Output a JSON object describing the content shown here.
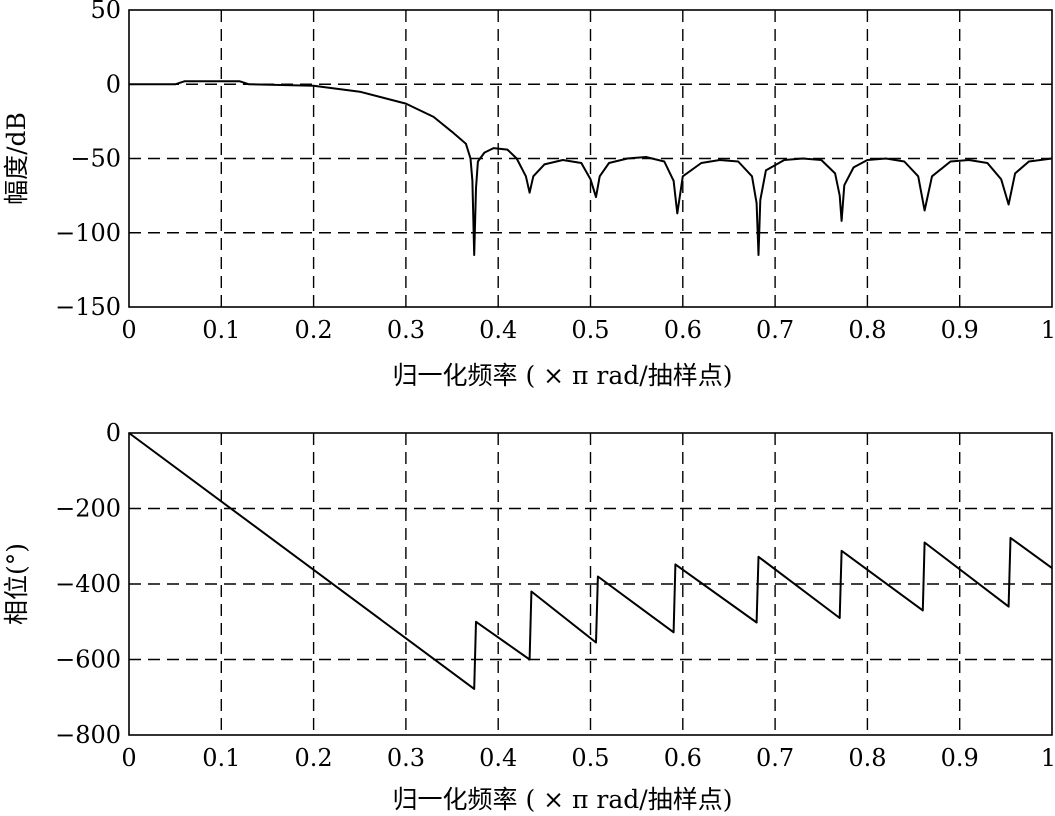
{
  "chart_data": [
    {
      "type": "line",
      "title": "",
      "xlabel": "归一化频率 ( × π rad/抽样点)",
      "ylabel": "幅度/dB",
      "xlim": [
        0,
        1
      ],
      "ylim": [
        -150,
        50
      ],
      "xticks": [
        "0",
        "0.1",
        "0.2",
        "0.3",
        "0.4",
        "0.5",
        "0.6",
        "0.7",
        "0.8",
        "0.9",
        "1"
      ],
      "yticks": [
        "50",
        "0",
        "−50",
        "−100",
        "−150"
      ],
      "grid": true,
      "series": [
        {
          "x": [
            0,
            0.05,
            0.06,
            0.12,
            0.13,
            0.2,
            0.25,
            0.3,
            0.33,
            0.35,
            0.365,
            0.37,
            0.372,
            0.374,
            0.376,
            0.378,
            0.385,
            0.395,
            0.41,
            0.42,
            0.43,
            0.434,
            0.438,
            0.45,
            0.47,
            0.49,
            0.5,
            0.506,
            0.51,
            0.52,
            0.54,
            0.56,
            0.58,
            0.59,
            0.594,
            0.6,
            0.62,
            0.64,
            0.66,
            0.675,
            0.68,
            0.682,
            0.684,
            0.69,
            0.71,
            0.73,
            0.75,
            0.765,
            0.77,
            0.772,
            0.775,
            0.785,
            0.8,
            0.82,
            0.84,
            0.855,
            0.862,
            0.87,
            0.89,
            0.91,
            0.93,
            0.945,
            0.953,
            0.96,
            0.975,
            1.0
          ],
          "y": [
            0,
            0,
            2,
            2,
            0,
            -1,
            -5,
            -13,
            -22,
            -32,
            -40,
            -50,
            -65,
            -115,
            -70,
            -52,
            -46,
            -43,
            -44,
            -50,
            -62,
            -73,
            -62,
            -54,
            -51,
            -53,
            -64,
            -76,
            -62,
            -53,
            -50,
            -49,
            -52,
            -65,
            -87,
            -62,
            -53,
            -51,
            -52,
            -62,
            -80,
            -115,
            -78,
            -58,
            -51,
            -50,
            -51,
            -60,
            -75,
            -92,
            -68,
            -56,
            -51,
            -50,
            -52,
            -62,
            -85,
            -62,
            -52,
            -51,
            -53,
            -64,
            -81,
            -60,
            -52,
            -50
          ]
        }
      ]
    },
    {
      "type": "line",
      "title": "",
      "xlabel": "归一化频率 ( × π rad/抽样点)",
      "ylabel": "相位(°)",
      "xlim": [
        0,
        1
      ],
      "ylim": [
        -800,
        0
      ],
      "xticks": [
        "0",
        "0.1",
        "0.2",
        "0.3",
        "0.4",
        "0.5",
        "0.6",
        "0.7",
        "0.8",
        "0.9",
        "1"
      ],
      "yticks": [
        "0",
        "−200",
        "−400",
        "−600",
        "−800"
      ],
      "grid": true,
      "series": [
        {
          "x": [
            0,
            0.374,
            0.376,
            0.434,
            0.436,
            0.506,
            0.508,
            0.59,
            0.592,
            0.68,
            0.682,
            0.77,
            0.772,
            0.86,
            0.862,
            0.953,
            0.955,
            1.0
          ],
          "y": [
            0,
            -678,
            -500,
            -600,
            -420,
            -555,
            -380,
            -528,
            -348,
            -502,
            -328,
            -490,
            -312,
            -470,
            -290,
            -460,
            -278,
            -358
          ]
        }
      ]
    }
  ]
}
